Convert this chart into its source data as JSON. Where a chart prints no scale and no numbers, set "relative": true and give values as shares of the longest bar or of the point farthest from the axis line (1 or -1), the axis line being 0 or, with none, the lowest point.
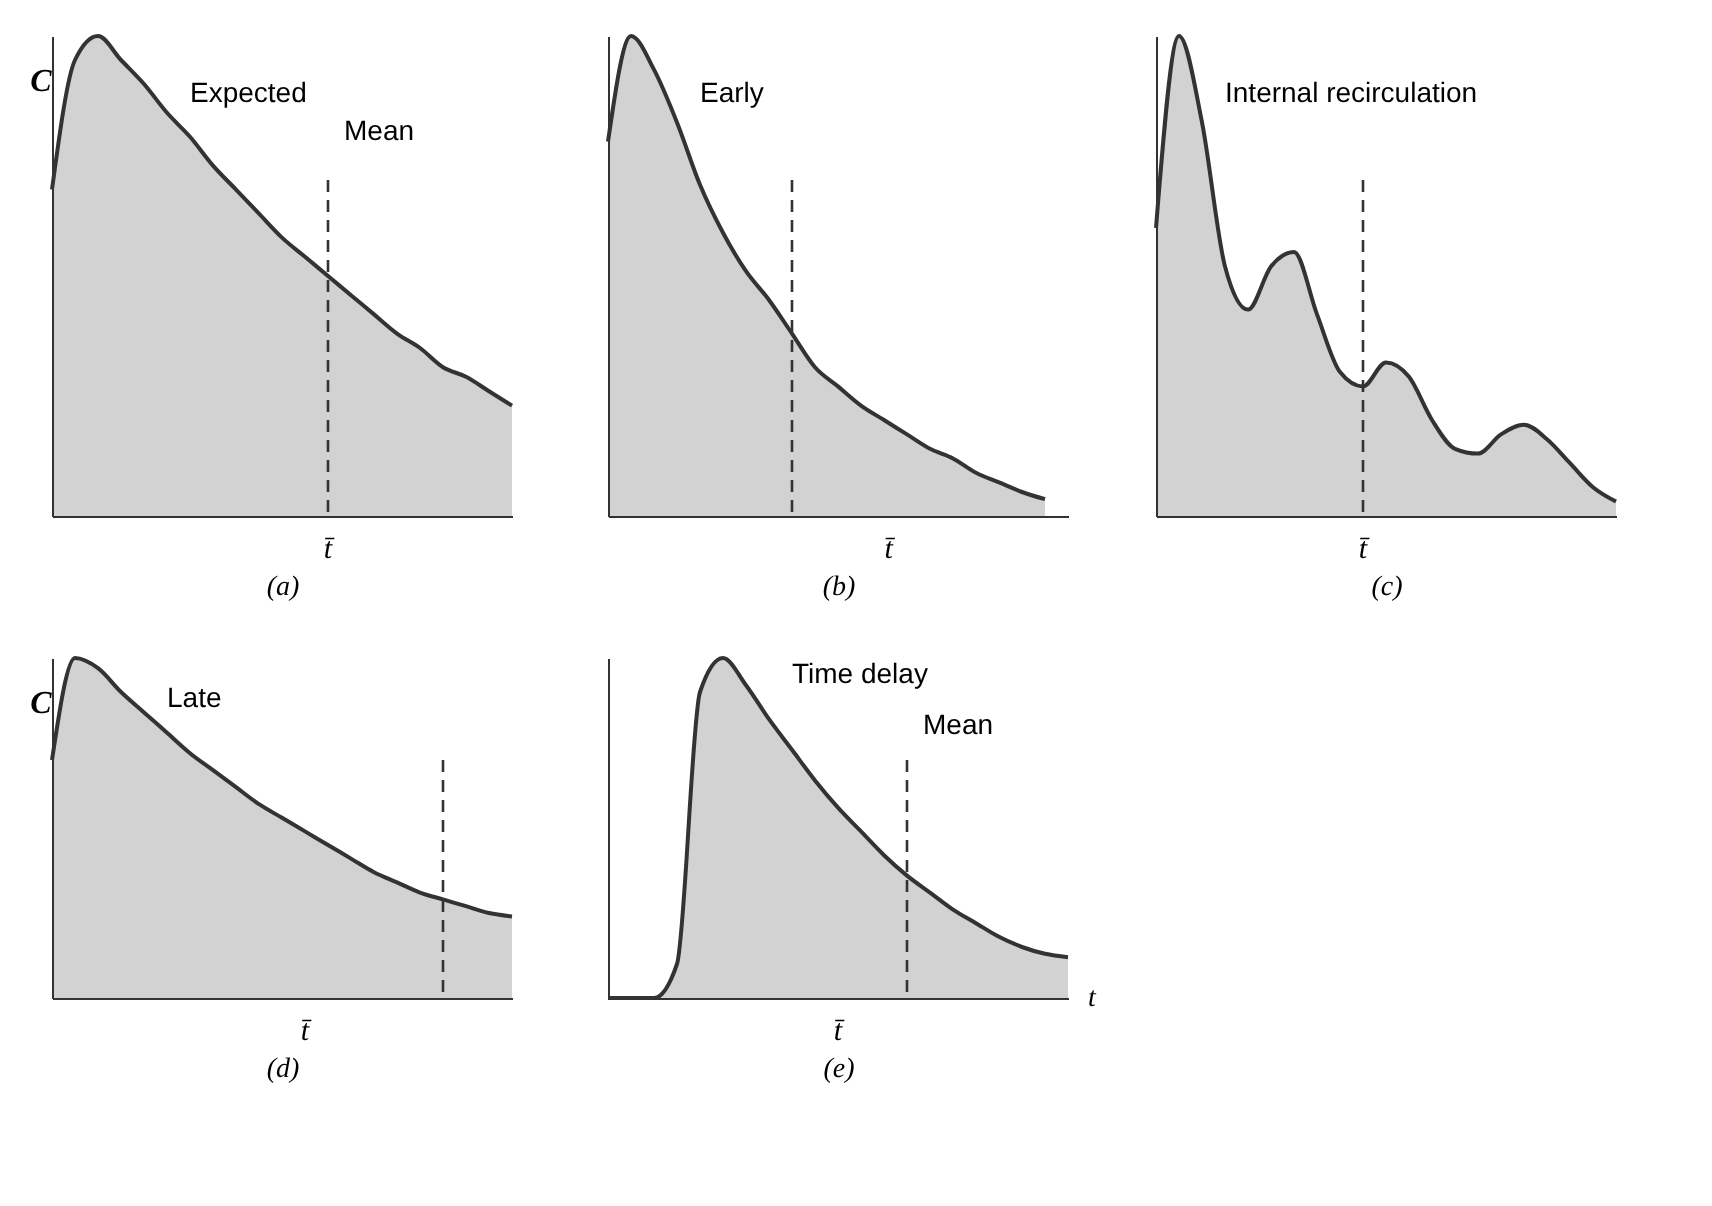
{
  "chart_data": [
    {
      "type": "area",
      "relative": true,
      "xlabel": "(a)",
      "ylabel": "C",
      "annotations": [
        "Expected",
        "Mean",
        "t̄"
      ],
      "categories": [
        null,
        null,
        null,
        null,
        null,
        null,
        null,
        null,
        null,
        null,
        null,
        null,
        null,
        null,
        null,
        null,
        null,
        null,
        null,
        null,
        null
      ],
      "series": [
        {
          "color": "#333333",
          "values": [
            0.68,
            0.95,
            1,
            0.95,
            0.9,
            0.84,
            0.79,
            0.73,
            0.68,
            0.63,
            0.58,
            0.54,
            0.5,
            0.46,
            0.42,
            0.38,
            0.35,
            0.31,
            0.29,
            0.26,
            0.23
          ]
        }
      ]
    },
    {
      "type": "area",
      "relative": true,
      "xlabel": "(b)",
      "annotations": [
        "Early",
        "t̄"
      ],
      "categories": [
        null,
        null,
        null,
        null,
        null,
        null,
        null,
        null,
        null,
        null,
        null,
        null,
        null,
        null,
        null,
        null,
        null,
        null,
        null,
        null,
        null
      ],
      "series": [
        {
          "color": "#333333",
          "values": [
            0.78,
            1,
            0.93,
            0.82,
            0.69,
            0.59,
            0.51,
            0.45,
            0.38,
            0.31,
            0.27,
            0.23,
            0.2,
            0.17,
            0.14,
            0.12,
            0.09,
            0.07,
            0.05,
            0.035,
            null
          ]
        }
      ]
    },
    {
      "type": "area",
      "relative": true,
      "xlabel": "(c)",
      "annotations": [
        "Internal recirculation",
        "t̄"
      ],
      "categories": [
        null,
        null,
        null,
        null,
        null,
        null,
        null,
        null,
        null,
        null,
        null,
        null,
        null,
        null,
        null,
        null,
        null,
        null,
        null,
        null,
        null
      ],
      "series": [
        {
          "color": "#333333",
          "values": [
            0.6,
            1,
            0.82,
            0.52,
            0.43,
            0.52,
            0.55,
            0.42,
            0.3,
            0.27,
            0.32,
            0.29,
            0.2,
            0.14,
            0.13,
            0.17,
            0.19,
            0.16,
            0.11,
            0.06,
            0.03
          ]
        }
      ]
    },
    {
      "type": "area",
      "relative": true,
      "xlabel": "(d)",
      "ylabel": "C",
      "annotations": [
        "Late",
        "t̄"
      ],
      "categories": [
        null,
        null,
        null,
        null,
        null,
        null,
        null,
        null,
        null,
        null,
        null,
        null,
        null,
        null,
        null,
        null,
        null,
        null,
        null,
        null,
        null
      ],
      "series": [
        {
          "color": "#333333",
          "values": [
            0.7,
            1,
            0.97,
            0.9,
            0.84,
            0.78,
            0.72,
            0.67,
            0.62,
            0.57,
            0.53,
            0.49,
            0.45,
            0.41,
            0.37,
            0.34,
            0.31,
            0.29,
            0.27,
            0.25,
            0.24
          ]
        }
      ]
    },
    {
      "type": "area",
      "relative": true,
      "xlabel": "(e)",
      "annotations": [
        "Time delay",
        "Mean",
        "t̄",
        "t"
      ],
      "categories": [
        null,
        null,
        null,
        null,
        null,
        null,
        null,
        null,
        null,
        null,
        null,
        null,
        null,
        null,
        null,
        null,
        null,
        null,
        null,
        null,
        null
      ],
      "series": [
        {
          "color": "#333333",
          "values": [
            0,
            0,
            0,
            0.1,
            0.9,
            1,
            0.92,
            0.82,
            0.73,
            0.64,
            0.56,
            0.49,
            0.42,
            0.36,
            0.31,
            0.26,
            0.22,
            0.18,
            0.15,
            0.13,
            0.12
          ]
        }
      ]
    }
  ]
}
